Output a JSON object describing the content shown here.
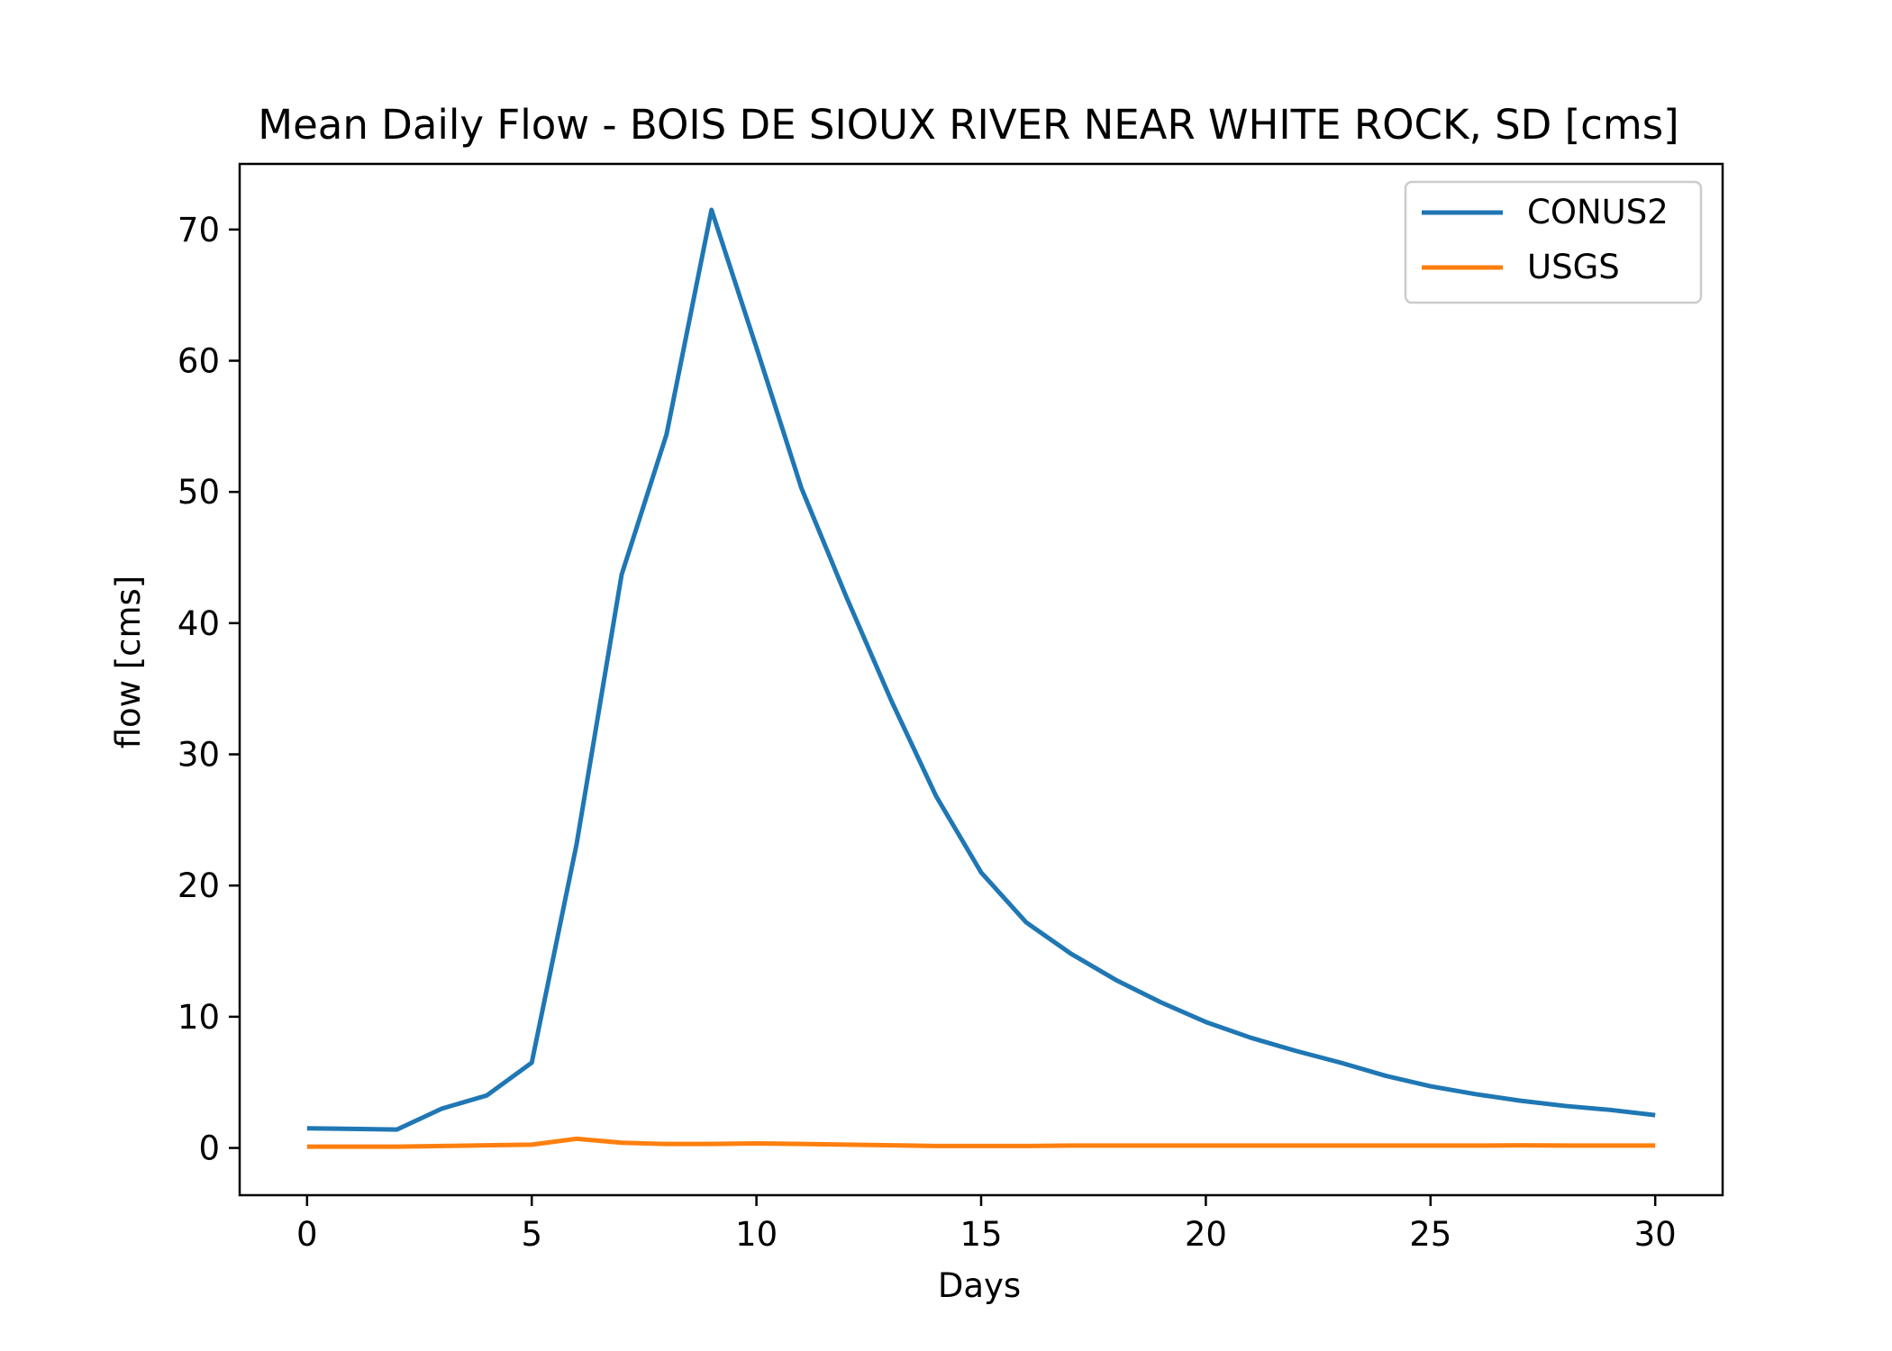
{
  "chart_data": {
    "type": "line",
    "title": "Mean Daily Flow - BOIS DE SIOUX RIVER NEAR WHITE ROCK, SD [cms]",
    "xlabel": "Days",
    "ylabel": "flow [cms]",
    "xlim": [
      -1.5,
      31.5
    ],
    "ylim": [
      -3.6,
      75.0
    ],
    "xticks": [
      0,
      5,
      10,
      15,
      20,
      25,
      30
    ],
    "yticks": [
      0,
      10,
      20,
      30,
      40,
      50,
      60,
      70
    ],
    "grid": false,
    "legend_position": "top-right",
    "x": [
      0,
      1,
      2,
      3,
      4,
      5,
      6,
      7,
      8,
      9,
      10,
      11,
      12,
      13,
      14,
      15,
      16,
      17,
      18,
      19,
      20,
      21,
      22,
      23,
      24,
      25,
      26,
      27,
      28,
      29,
      30
    ],
    "series": [
      {
        "name": "CONUS2",
        "color": "#1f77b4",
        "values": [
          1.5,
          1.45,
          1.4,
          3.0,
          4.0,
          6.5,
          23.2,
          43.7,
          54.4,
          71.5,
          61.0,
          50.3,
          42.0,
          34.1,
          26.8,
          21.0,
          17.2,
          14.8,
          12.8,
          11.1,
          9.6,
          8.4,
          7.4,
          6.5,
          5.5,
          4.7,
          4.1,
          3.6,
          3.2,
          2.9,
          2.5
        ]
      },
      {
        "name": "USGS",
        "color": "#ff7f0e",
        "values": [
          0.1,
          0.1,
          0.1,
          0.15,
          0.2,
          0.25,
          0.7,
          0.4,
          0.3,
          0.3,
          0.35,
          0.3,
          0.25,
          0.2,
          0.15,
          0.15,
          0.15,
          0.18,
          0.18,
          0.18,
          0.18,
          0.18,
          0.18,
          0.18,
          0.18,
          0.18,
          0.18,
          0.2,
          0.18,
          0.18,
          0.18
        ]
      }
    ]
  }
}
